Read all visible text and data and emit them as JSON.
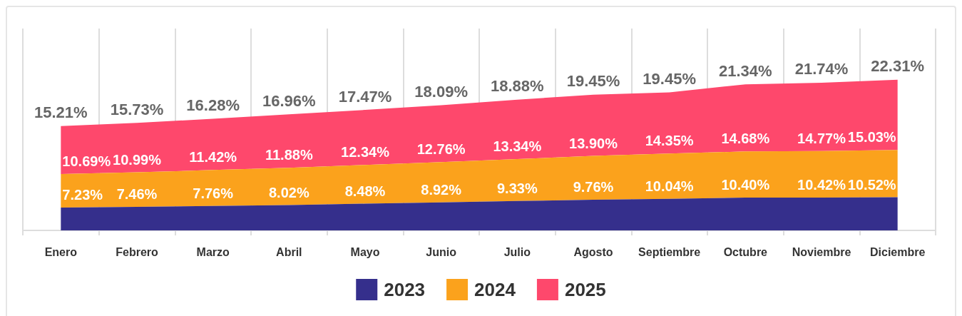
{
  "chart_data": {
    "type": "area",
    "stacked": true,
    "grid": "x",
    "legend": "bottom",
    "categories": [
      "Enero",
      "Febrero",
      "Marzo",
      "Abril",
      "Mayo",
      "Junio",
      "Julio",
      "Agosto",
      "Septiembre",
      "Octubre",
      "Noviembre",
      "Diciembre"
    ],
    "series": [
      {
        "name": "2023",
        "color": "#352f8c",
        "values": [
          7.23,
          7.46,
          7.76,
          8.02,
          8.48,
          8.92,
          9.33,
          9.76,
          10.04,
          10.4,
          10.42,
          10.52
        ],
        "value_labels": [
          "7.23%",
          "7.46%",
          "7.76%",
          "8.02%",
          "8.48%",
          "8.92%",
          "9.33%",
          "9.76%",
          "10.04%",
          "10.40%",
          "10.42%",
          "10.52%"
        ]
      },
      {
        "name": "2024",
        "color": "#fba21c",
        "values": [
          10.69,
          10.99,
          11.42,
          11.88,
          12.34,
          12.76,
          13.34,
          13.9,
          14.35,
          14.68,
          14.77,
          15.03
        ],
        "value_labels": [
          "10.69%",
          "10.99%",
          "11.42%",
          "11.88%",
          "12.34%",
          "12.76%",
          "13.34%",
          "13.90%",
          "14.35%",
          "14.68%",
          "14.77%",
          "15.03%"
        ]
      },
      {
        "name": "2025",
        "color": "#fe486c",
        "values": [
          15.21,
          15.73,
          16.28,
          16.96,
          17.47,
          18.09,
          18.88,
          19.45,
          19.45,
          21.34,
          21.74,
          22.31
        ],
        "value_labels": [
          "15.21%",
          "15.73%",
          "16.28%",
          "16.96%",
          "17.47%",
          "18.09%",
          "18.88%",
          "19.45%",
          "19.45%",
          "21.34%",
          "21.74%",
          "22.31%"
        ]
      }
    ]
  }
}
